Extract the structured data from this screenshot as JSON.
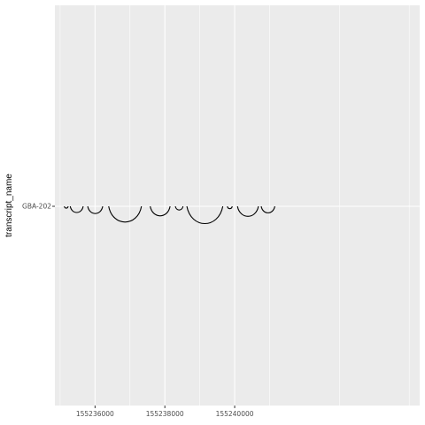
{
  "chart_data": {
    "type": "arc",
    "title": "",
    "xlabel": "",
    "ylabel": "transcript_name",
    "y_categories": [
      "GBA-202"
    ],
    "xlim": [
      155234850,
      155245300
    ],
    "x_ticks": [
      155236000,
      155238000,
      155240000
    ],
    "x_tick_labels": [
      "155236000",
      "155238000",
      "155240000"
    ],
    "grid": true,
    "junctions": [
      {
        "transcript": "GBA-202",
        "start": 155235120,
        "end": 155235230
      },
      {
        "transcript": "GBA-202",
        "start": 155235290,
        "end": 155235660
      },
      {
        "transcript": "GBA-202",
        "start": 155235790,
        "end": 155236220
      },
      {
        "transcript": "GBA-202",
        "start": 155236390,
        "end": 155237330
      },
      {
        "transcript": "GBA-202",
        "start": 155237580,
        "end": 155238150
      },
      {
        "transcript": "GBA-202",
        "start": 155238300,
        "end": 155238520
      },
      {
        "transcript": "GBA-202",
        "start": 155238630,
        "end": 155239660
      },
      {
        "transcript": "GBA-202",
        "start": 155239790,
        "end": 155239930
      },
      {
        "transcript": "GBA-202",
        "start": 155240080,
        "end": 155240680
      },
      {
        "transcript": "GBA-202",
        "start": 155240760,
        "end": 155241150
      }
    ]
  },
  "colors": {
    "panel": "#ebebeb",
    "grid": "#ffffff",
    "arc": "#000000",
    "tick": "#4d4d4d"
  }
}
